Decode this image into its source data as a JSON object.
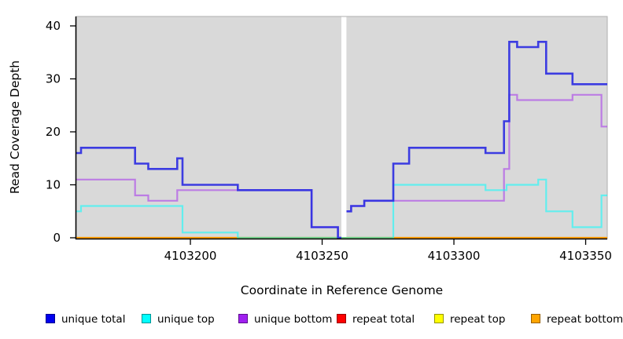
{
  "figure": {
    "background": "#FFFFFF"
  },
  "chart_data": {
    "type": "line",
    "style": "step",
    "title": "",
    "xlabel": "Coordinate in Reference Genome",
    "ylabel": "Read Coverage Depth",
    "xlim": [
      4103156.7,
      4103358.2
    ],
    "ylim": [
      0,
      41.8
    ],
    "x_ticks": [
      4103200,
      4103250,
      4103300,
      4103350
    ],
    "y_ticks": [
      0,
      10,
      20,
      30,
      40
    ],
    "grid": false,
    "panel_bg": "#D9D9D9",
    "panel_border": "#AFAFAF",
    "axis_color": "#000000",
    "missing_data_gap_x": [
      4103257.3,
      4103259.2
    ],
    "legend_position": "bottom",
    "series": [
      {
        "name": "repeat total",
        "color": "#E00000",
        "opacity": 1,
        "width": 2,
        "segments": [
          [
            4103156.7,
            4103358.2,
            0
          ]
        ]
      },
      {
        "name": "repeat top",
        "color": "#FFFF00",
        "opacity": 1,
        "width": 2,
        "segments": [
          [
            4103156.7,
            4103358.2,
            0
          ]
        ]
      },
      {
        "name": "repeat bottom",
        "color": "#FF9E00",
        "opacity": 1,
        "width": 2.2,
        "segments": [
          [
            4103156.7,
            4103358.2,
            0
          ]
        ]
      },
      {
        "name": "unique bottom",
        "color": "#A020F0",
        "opacity": 0.5,
        "width": 2.2,
        "segments": [
          [
            4103156.7,
            4103179,
            11
          ],
          [
            4103179,
            4103184,
            8
          ],
          [
            4103184,
            4103195,
            7
          ],
          [
            4103195,
            4103246,
            9
          ],
          [
            4103246,
            4103256,
            2
          ],
          [
            4103256,
            4103257.3,
            0
          ],
          [
            4103259.2,
            4103261,
            5
          ],
          [
            4103261,
            4103266,
            6
          ],
          [
            4103266,
            4103319,
            7
          ],
          [
            4103319,
            4103321,
            13
          ],
          [
            4103321,
            4103324,
            27
          ],
          [
            4103324,
            4103345,
            26
          ],
          [
            4103345,
            4103356,
            27
          ],
          [
            4103356,
            4103358.2,
            21
          ]
        ]
      },
      {
        "name": "unique top",
        "color": "#00FFFF",
        "opacity": 0.55,
        "width": 2.2,
        "segments": [
          [
            4103156.7,
            4103158.5,
            5
          ],
          [
            4103158.5,
            4103197,
            6
          ],
          [
            4103197,
            4103218,
            1
          ],
          [
            4103218,
            4103277,
            0
          ],
          [
            4103277,
            4103312,
            10
          ],
          [
            4103312,
            4103320,
            9
          ],
          [
            4103320,
            4103332,
            10
          ],
          [
            4103332,
            4103335,
            11
          ],
          [
            4103335,
            4103345,
            5
          ],
          [
            4103345,
            4103356,
            2
          ],
          [
            4103356,
            4103358.2,
            8
          ]
        ]
      },
      {
        "name": "unique total",
        "color": "#2F2FE2",
        "opacity": 0.92,
        "width": 2.6,
        "segments": [
          [
            4103156.7,
            4103158.5,
            16
          ],
          [
            4103158.5,
            4103179,
            17
          ],
          [
            4103179,
            4103184,
            14
          ],
          [
            4103184,
            4103195,
            13
          ],
          [
            4103195,
            4103197,
            15
          ],
          [
            4103197,
            4103218,
            10
          ],
          [
            4103218,
            4103246,
            9
          ],
          [
            4103246,
            4103256,
            2
          ],
          [
            4103256,
            4103257.3,
            0
          ],
          [
            4103259.2,
            4103261,
            5
          ],
          [
            4103261,
            4103266,
            6
          ],
          [
            4103266,
            4103277,
            7
          ],
          [
            4103277,
            4103283,
            14
          ],
          [
            4103283,
            4103312,
            17
          ],
          [
            4103312,
            4103319,
            16
          ],
          [
            4103319,
            4103321,
            22
          ],
          [
            4103321,
            4103324,
            37
          ],
          [
            4103324,
            4103332,
            36
          ],
          [
            4103332,
            4103335,
            37
          ],
          [
            4103335,
            4103345,
            31
          ],
          [
            4103345,
            4103358.2,
            29
          ]
        ]
      }
    ]
  },
  "legend": {
    "items": [
      {
        "label": "unique total",
        "color": "#0000EE",
        "border": "#000090"
      },
      {
        "label": "unique top",
        "color": "#00FFFF",
        "border": "#009595"
      },
      {
        "label": "unique bottom",
        "color": "#A020F0",
        "border": "#5C0E8E"
      },
      {
        "label": "repeat total",
        "color": "#FF0000",
        "border": "#990000"
      },
      {
        "label": "repeat top",
        "color": "#FFFF00",
        "border": "#959500"
      },
      {
        "label": "repeat bottom",
        "color": "#FFA500",
        "border": "#995F00"
      }
    ]
  }
}
